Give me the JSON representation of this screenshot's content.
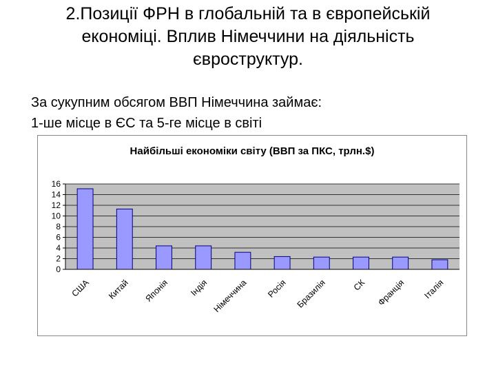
{
  "slide": {
    "title_lines": [
      "2.Позиції ФРН в глобальній та в європейській",
      "економіці. Вплив Німеччини на діяльність",
      "євроструктур."
    ],
    "body_lines": [
      "За сукупним обсягом ВВП Німеччина займає:",
      "1-ше місце в ЄС та 5-ге місце в світі"
    ]
  },
  "chart_data": {
    "type": "bar",
    "title": "Найбільші економіки світу (ВВП за ПКС, трлн.$)",
    "xlabel": "",
    "ylabel": "",
    "categories": [
      "США",
      "Китай",
      "Японія",
      "Індія",
      "Німеччина",
      "Росія",
      "Бразилія",
      "СК",
      "Франція",
      "Італія"
    ],
    "values": [
      15.1,
      11.3,
      4.4,
      4.4,
      3.2,
      2.4,
      2.3,
      2.3,
      2.3,
      1.8
    ],
    "ylim": [
      0,
      16
    ],
    "yticks": [
      "0",
      "2",
      "4",
      "6",
      "8",
      "10",
      "12",
      "14",
      "16"
    ],
    "grid": true,
    "legend": "none",
    "colors": {
      "bar_fill": "#9999ff",
      "bar_stroke": "#000080",
      "plot_bg": "#c0c0c0",
      "grid": "#000000"
    }
  }
}
